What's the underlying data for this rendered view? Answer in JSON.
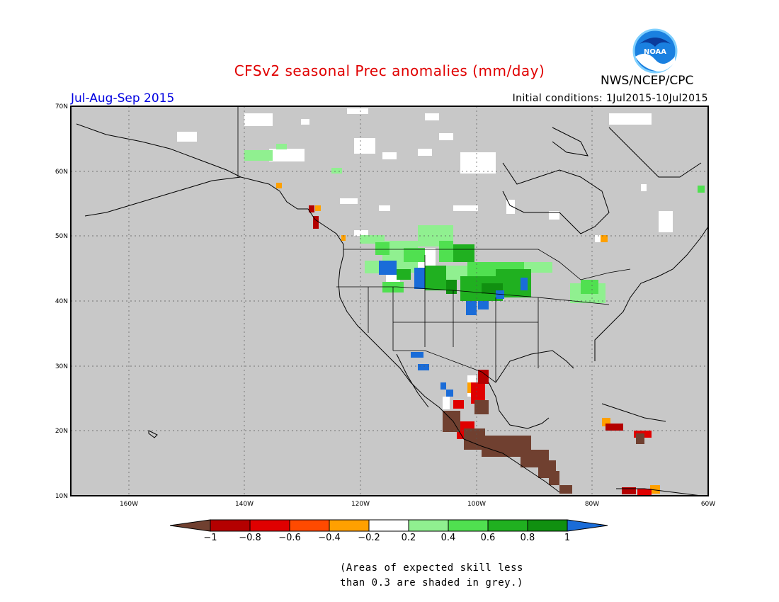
{
  "header": {
    "title": "CFSv2 seasonal Prec anomalies (mm/day)",
    "period": "Jul-Aug-Sep 2015",
    "initial_conditions": "Initial conditions: 1Jul2015-10Jul2015",
    "agency": "NWS/NCEP/CPC",
    "logo_text": "NOAA",
    "title_color": "#e00000",
    "period_color": "#0000e0"
  },
  "map": {
    "lat_labels": [
      "70N",
      "60N",
      "50N",
      "40N",
      "30N",
      "20N",
      "10N"
    ],
    "lon_labels": [
      "160W",
      "140W",
      "120W",
      "100W",
      "80W",
      "60W"
    ],
    "background_color": "#c8c8c8"
  },
  "colorbar": {
    "ticks": [
      "−1",
      "−0.8",
      "−0.6",
      "−0.4",
      "−0.2",
      "0.2",
      "0.4",
      "0.6",
      "0.8",
      "1"
    ],
    "colors": [
      "#704030",
      "#b40000",
      "#e00000",
      "#ff4a00",
      "#ffa000",
      "#ffffff",
      "#90f090",
      "#50e050",
      "#20b020",
      "#109010",
      "#1a6cd8"
    ]
  },
  "footnote": {
    "line1": "(Areas of expected skill less",
    "line2": "than 0.3 are shaded in grey.)"
  }
}
